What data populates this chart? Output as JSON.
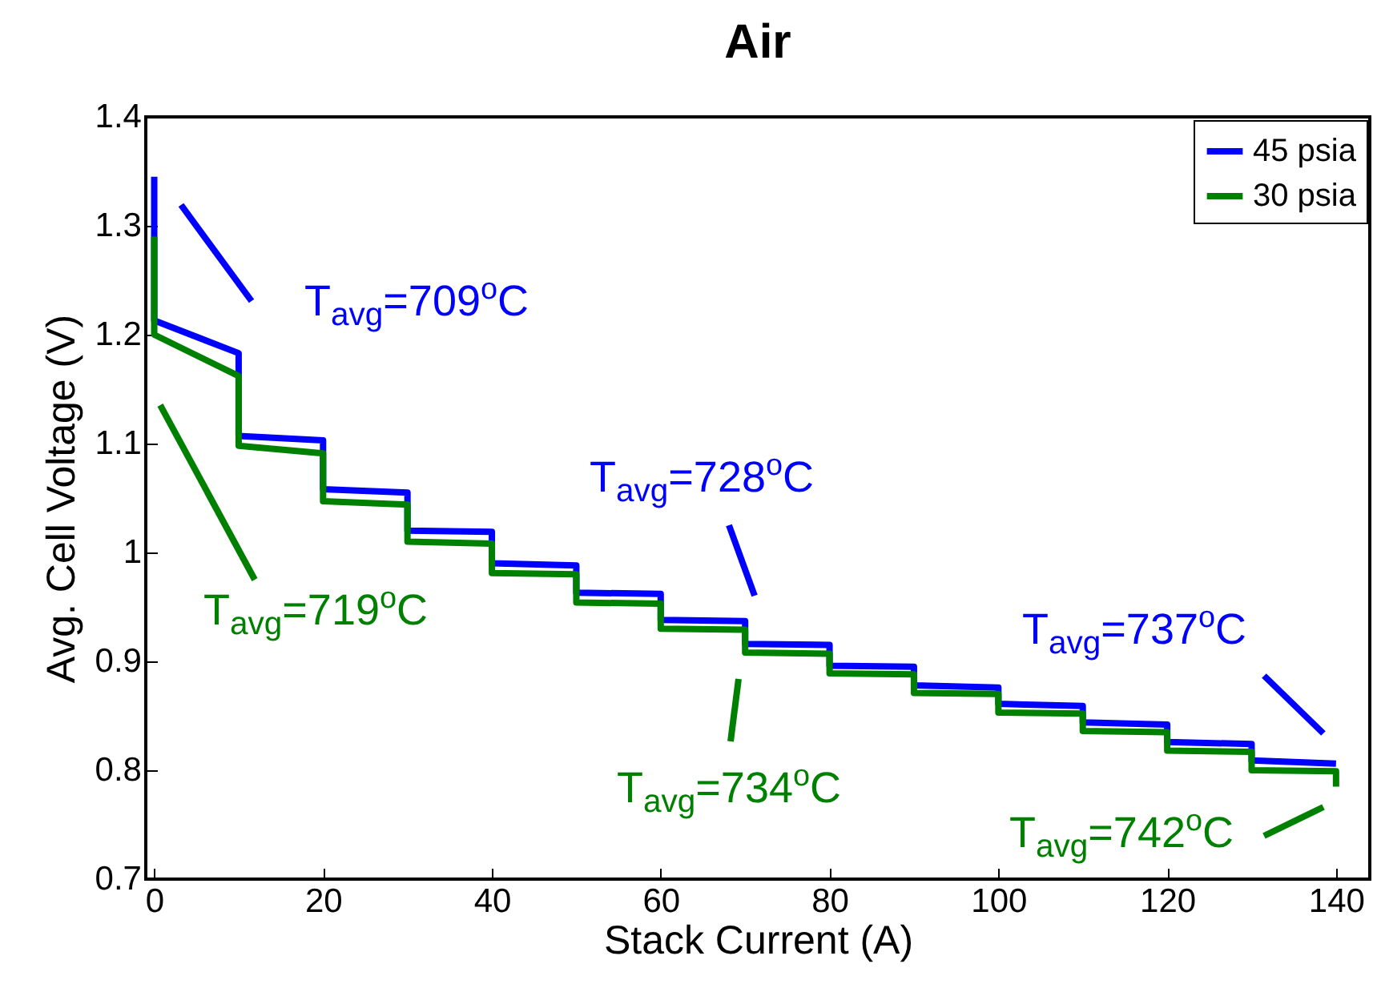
{
  "chart_data": {
    "type": "line",
    "title": "Air",
    "xlabel": "Stack Current (A)",
    "ylabel": "Avg. Cell Voltage (V)",
    "xlim": [
      -1,
      144
    ],
    "ylim": [
      0.7,
      1.4
    ],
    "xticks": [
      0,
      20,
      40,
      60,
      80,
      100,
      120,
      140
    ],
    "yticks": [
      0.7,
      0.8,
      0.9,
      1,
      1.1,
      1.2,
      1.3,
      1.4
    ],
    "grid": false,
    "legend": "top right",
    "marker": "none",
    "line_style": "solid",
    "series": [
      {
        "name": "45 psia",
        "color": "#0000ff",
        "x": [
          0,
          0,
          10,
          10,
          20,
          20,
          30,
          30,
          40,
          40,
          50,
          50,
          60,
          60,
          70,
          70,
          80,
          80,
          90,
          90,
          100,
          100,
          110,
          110,
          120,
          120,
          130,
          130,
          140
        ],
        "values": [
          1.345,
          1.213,
          1.183,
          1.107,
          1.103,
          1.058,
          1.055,
          1.02,
          1.019,
          0.99,
          0.988,
          0.963,
          0.962,
          0.938,
          0.937,
          0.916,
          0.915,
          0.896,
          0.895,
          0.878,
          0.876,
          0.861,
          0.859,
          0.844,
          0.842,
          0.826,
          0.824,
          0.809,
          0.806
        ]
      },
      {
        "name": "30 psia",
        "color": "#008000",
        "x": [
          0,
          0,
          10,
          10,
          20,
          20,
          30,
          30,
          40,
          40,
          50,
          50,
          60,
          60,
          70,
          70,
          80,
          80,
          90,
          90,
          100,
          100,
          110,
          110,
          120,
          120,
          130,
          130,
          140,
          140
        ],
        "values": [
          1.29,
          1.2,
          1.162,
          1.098,
          1.091,
          1.047,
          1.044,
          1.01,
          1.008,
          0.981,
          0.98,
          0.954,
          0.953,
          0.93,
          0.929,
          0.908,
          0.907,
          0.889,
          0.888,
          0.871,
          0.87,
          0.853,
          0.852,
          0.836,
          0.835,
          0.818,
          0.817,
          0.8,
          0.799,
          0.785
        ]
      }
    ],
    "annotations": [
      "T$_{avg}$=709$^{o}$C",
      "T$_{avg}$=719$^{o}$C",
      "T$_{avg}$=728$^{o}$C",
      "T$_{avg}$=734$^{o}$C",
      "T$_{avg}$=737$^{o}$C",
      "T$_{avg}$=742$^{o}$C"
    ]
  }
}
